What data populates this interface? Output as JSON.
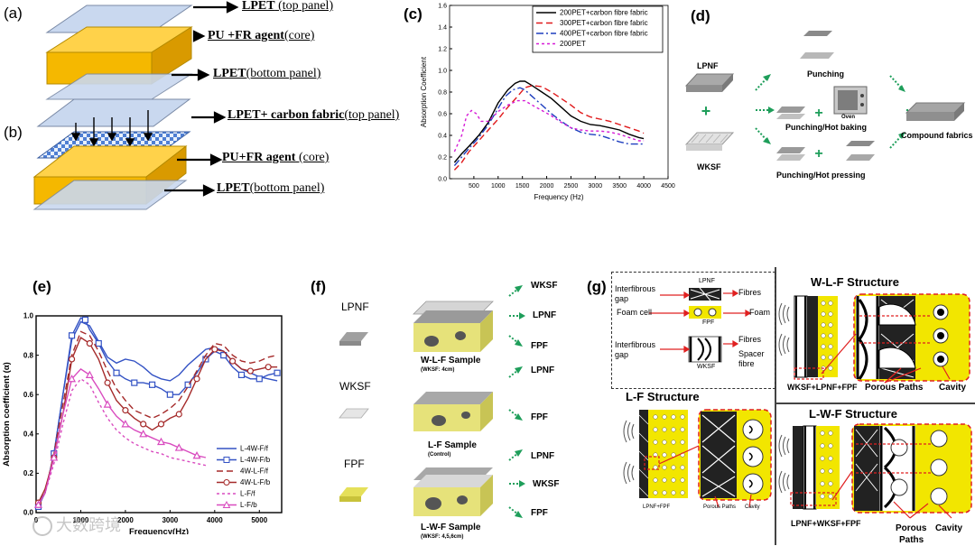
{
  "panels": {
    "a": {
      "label": "(a)",
      "layers": [
        {
          "bold": "LPET",
          "rest": " (top panel)"
        },
        {
          "bold": "PU +FR agent",
          "rest": "(core)"
        },
        {
          "bold": "LPET",
          "rest": "(bottom panel)"
        }
      ]
    },
    "b": {
      "label": "(b)",
      "layers": [
        {
          "bold": "LPET+ carbon fabric",
          "rest": "(top panel)"
        },
        {
          "bold": "PU+FR agent",
          "rest": " (core)"
        },
        {
          "bold": "LPET",
          "rest": "(bottom panel)"
        }
      ]
    },
    "d": {
      "label": "(d)",
      "lpnf": "LPNF",
      "wksf": "WKSF",
      "plus": "+",
      "punching": "Punching",
      "oven": "Oven",
      "punching_hot_baking": "Punching/Hot baking",
      "punching_hot_pressing": "Punching/Hot pressing",
      "compound_fabrics": "Compound fabrics"
    },
    "f": {
      "label": "(f)",
      "materials": [
        "LPNF",
        "WKSF",
        "FPF"
      ],
      "samples": [
        {
          "title": "W-L-F Sample",
          "sub": "(WKSF: 4cm)",
          "layers": [
            "WKSF",
            "LPNF",
            "FPF"
          ]
        },
        {
          "title": "L-F Sample",
          "sub": "(Control)",
          "layers": [
            "LPNF",
            "FPF"
          ]
        },
        {
          "title": "L-W-F Sample",
          "sub": "(WKSF: 4,5,6cm)",
          "layers": [
            "LPNF",
            "WKSF",
            "FPF"
          ]
        }
      ]
    },
    "g": {
      "label": "(g)",
      "legend": {
        "lpnf": "LPNF",
        "fpf": "FPF",
        "wksf": "WKSF",
        "interfibrous_gap": "Interfibrous gap",
        "foam_cell": "Foam cell",
        "fibres": "Fibres",
        "foam": "Foam",
        "spacer_fibre": "Spacer fibre"
      },
      "wlf_title": "W-L-F Structure",
      "lf_title": "L-F Structure",
      "lwf_title": "L-W-F Structure",
      "wlf_caption": "WKSF+LPNF+FPF",
      "lf_caption": "LPNF+FPF",
      "lwf_caption": "LPNF+WKSF+FPF",
      "porous_paths": "Porous Paths",
      "porous": "Porous",
      "paths": "Paths",
      "cavity": "Cavity"
    }
  },
  "watermark": "大数跨境",
  "chart_data": [
    {
      "id": "c",
      "label": "(c)",
      "type": "line",
      "xlabel": "Frequency (Hz)",
      "ylabel": "Absorption Coefficient",
      "xlim": [
        0,
        4500
      ],
      "ylim": [
        0.0,
        1.6
      ],
      "xticks": [
        500,
        1000,
        1500,
        2000,
        2500,
        3000,
        3500,
        4000,
        4500
      ],
      "yticks": [
        0.0,
        0.2,
        0.4,
        0.6,
        0.8,
        1.0,
        1.2,
        1.4,
        1.6
      ],
      "legend_position": "top-right",
      "series": [
        {
          "name": "200PET+carbon fibre fabric",
          "color": "#000000",
          "dash": "",
          "x": [
            100,
            250,
            400,
            600,
            800,
            1000,
            1200,
            1350,
            1450,
            1550,
            1700,
            1900,
            2100,
            2300,
            2500,
            2700,
            2900,
            3100,
            3300,
            3500,
            3700,
            3900,
            4000
          ],
          "y": [
            0.15,
            0.23,
            0.3,
            0.4,
            0.52,
            0.7,
            0.82,
            0.88,
            0.9,
            0.9,
            0.86,
            0.8,
            0.74,
            0.66,
            0.58,
            0.53,
            0.5,
            0.49,
            0.47,
            0.45,
            0.41,
            0.38,
            0.37
          ]
        },
        {
          "name": "300PET+carbon fibre fabric",
          "color": "#e0191b",
          "dash": "7,4",
          "x": [
            100,
            250,
            400,
            600,
            800,
            1000,
            1200,
            1400,
            1550,
            1700,
            1900,
            2100,
            2300,
            2500,
            2700,
            2900,
            3100,
            3300,
            3500,
            3700,
            3900,
            4000
          ],
          "y": [
            0.08,
            0.15,
            0.25,
            0.35,
            0.45,
            0.55,
            0.66,
            0.76,
            0.84,
            0.86,
            0.85,
            0.8,
            0.74,
            0.68,
            0.61,
            0.57,
            0.55,
            0.53,
            0.5,
            0.47,
            0.44,
            0.42
          ]
        },
        {
          "name": "400PET+carbon fibre fabric",
          "color": "#1f3fbf",
          "dash": "8,3,2,3",
          "x": [
            100,
            250,
            400,
            600,
            800,
            1000,
            1150,
            1300,
            1450,
            1550,
            1700,
            1900,
            2100,
            2300,
            2500,
            2700,
            2900,
            3100,
            3300,
            3500,
            3700,
            3900,
            4000
          ],
          "y": [
            0.12,
            0.2,
            0.28,
            0.38,
            0.5,
            0.65,
            0.76,
            0.82,
            0.84,
            0.82,
            0.76,
            0.68,
            0.6,
            0.53,
            0.47,
            0.43,
            0.41,
            0.4,
            0.37,
            0.34,
            0.32,
            0.32,
            0.32
          ]
        },
        {
          "name": "200PET",
          "color": "#d61cd6",
          "dash": "3,3",
          "x": [
            100,
            250,
            350,
            450,
            550,
            650,
            800,
            1000,
            1200,
            1400,
            1550,
            1700,
            1900,
            2100,
            2300,
            2500,
            2700,
            2900,
            3100,
            3300,
            3500,
            3700,
            3900,
            4000
          ],
          "y": [
            0.25,
            0.4,
            0.58,
            0.63,
            0.6,
            0.53,
            0.53,
            0.62,
            0.68,
            0.72,
            0.72,
            0.68,
            0.63,
            0.58,
            0.52,
            0.47,
            0.45,
            0.44,
            0.44,
            0.43,
            0.41,
            0.38,
            0.35,
            0.35
          ]
        }
      ]
    },
    {
      "id": "e",
      "label": "(e)",
      "type": "line",
      "xlabel": "Frequency(Hz)",
      "ylabel": "Absorption coefficient (α)",
      "xlim": [
        0,
        5500
      ],
      "ylim": [
        0.0,
        1.0
      ],
      "xticks": [
        0,
        1000,
        2000,
        3000,
        4000,
        5000
      ],
      "yticks": [
        0.0,
        0.2,
        0.4,
        0.6,
        0.8,
        1.0
      ],
      "legend_position": "bottom-right",
      "series": [
        {
          "name": "L-4W-F/f",
          "color": "#3352c4",
          "dash": "",
          "marker": "",
          "x": [
            50,
            200,
            400,
            600,
            800,
            1000,
            1200,
            1400,
            1600,
            1800,
            2000,
            2200,
            2400,
            2600,
            2800,
            3000,
            3200,
            3400,
            3600,
            3800,
            4000,
            4200,
            4400,
            4600,
            4800,
            5000,
            5200,
            5400
          ],
          "y": [
            0.05,
            0.1,
            0.3,
            0.6,
            0.88,
            0.97,
            0.95,
            0.87,
            0.79,
            0.76,
            0.78,
            0.77,
            0.74,
            0.7,
            0.68,
            0.67,
            0.7,
            0.75,
            0.79,
            0.83,
            0.84,
            0.82,
            0.77,
            0.73,
            0.71,
            0.69,
            0.68,
            0.67
          ]
        },
        {
          "name": "L-4W-F/b",
          "color": "#3352c4",
          "dash": "",
          "marker": "square",
          "x": [
            50,
            200,
            400,
            600,
            800,
            1000,
            1100,
            1200,
            1400,
            1600,
            1800,
            2000,
            2200,
            2400,
            2600,
            2800,
            3000,
            3200,
            3400,
            3600,
            3800,
            4000,
            4200,
            4400,
            4600,
            4800,
            5000,
            5200,
            5400
          ],
          "y": [
            0.03,
            0.1,
            0.3,
            0.6,
            0.9,
            0.99,
            0.98,
            0.93,
            0.86,
            0.77,
            0.71,
            0.68,
            0.66,
            0.66,
            0.65,
            0.63,
            0.6,
            0.6,
            0.65,
            0.71,
            0.78,
            0.82,
            0.8,
            0.74,
            0.7,
            0.68,
            0.68,
            0.7,
            0.71
          ]
        },
        {
          "name": "4W-L-F/f",
          "color": "#a52a2a",
          "dash": "7,4",
          "marker": "",
          "x": [
            50,
            200,
            400,
            600,
            800,
            1000,
            1200,
            1400,
            1600,
            1800,
            2000,
            2200,
            2400,
            2600,
            2800,
            3000,
            3200,
            3400,
            3600,
            3800,
            4000,
            4200,
            4400,
            4600,
            4800,
            5000,
            5200,
            5400
          ],
          "y": [
            0.04,
            0.1,
            0.3,
            0.55,
            0.8,
            0.92,
            0.9,
            0.82,
            0.72,
            0.63,
            0.57,
            0.52,
            0.5,
            0.48,
            0.5,
            0.53,
            0.57,
            0.64,
            0.72,
            0.8,
            0.86,
            0.85,
            0.8,
            0.77,
            0.76,
            0.77,
            0.79,
            0.8
          ]
        },
        {
          "name": "4W-L-F/b",
          "color": "#a52a2a",
          "dash": "",
          "marker": "circle",
          "x": [
            50,
            200,
            400,
            600,
            800,
            1000,
            1200,
            1400,
            1600,
            1800,
            2000,
            2200,
            2400,
            2600,
            2800,
            3000,
            3200,
            3400,
            3600,
            3800,
            4000,
            4200,
            4400,
            4600,
            4800,
            5000,
            5200,
            5400
          ],
          "y": [
            0.05,
            0.12,
            0.28,
            0.5,
            0.78,
            0.89,
            0.86,
            0.78,
            0.66,
            0.57,
            0.52,
            0.48,
            0.45,
            0.42,
            0.45,
            0.48,
            0.5,
            0.58,
            0.68,
            0.78,
            0.83,
            0.82,
            0.77,
            0.73,
            0.72,
            0.73,
            0.74,
            0.74
          ]
        },
        {
          "name": "L-F/f",
          "color": "#d94bbf",
          "dash": "3,3",
          "marker": "",
          "x": [
            50,
            200,
            400,
            600,
            800,
            1000,
            1200,
            1400,
            1600,
            1800,
            2000,
            2200,
            2400,
            2600,
            2800,
            3000,
            3200,
            3400,
            3600,
            3800
          ],
          "y": [
            0.04,
            0.1,
            0.25,
            0.45,
            0.62,
            0.68,
            0.65,
            0.56,
            0.48,
            0.42,
            0.38,
            0.35,
            0.33,
            0.31,
            0.3,
            0.28,
            0.27,
            0.26,
            0.25,
            0.24
          ]
        },
        {
          "name": "L-F/b",
          "color": "#d94bbf",
          "dash": "",
          "marker": "triangle",
          "x": [
            50,
            200,
            400,
            600,
            800,
            1000,
            1200,
            1400,
            1600,
            1800,
            2000,
            2200,
            2400,
            2600,
            2800,
            3000,
            3200,
            3400,
            3600,
            3800
          ],
          "y": [
            0.04,
            0.1,
            0.28,
            0.5,
            0.68,
            0.73,
            0.7,
            0.63,
            0.55,
            0.49,
            0.45,
            0.42,
            0.4,
            0.38,
            0.36,
            0.35,
            0.33,
            0.31,
            0.29,
            0.28
          ]
        }
      ]
    }
  ]
}
